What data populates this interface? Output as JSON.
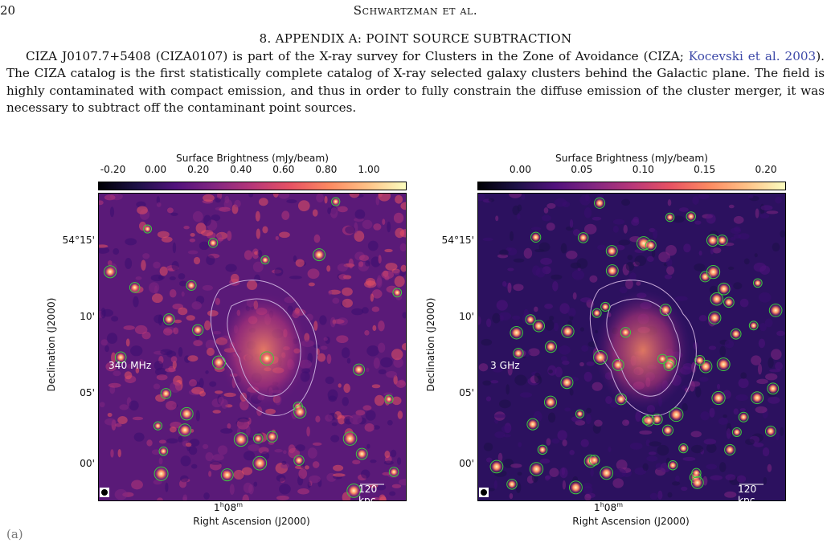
{
  "header": {
    "page_number": "20",
    "running_head": "Schwartzman et al."
  },
  "section": {
    "title": "8. APPENDIX A: POINT SOURCE SUBTRACTION"
  },
  "paragraph": {
    "pre": "CIZA J0107.7+5408 (CIZA0107) is part of the X-ray survey for Clusters in the Zone of Avoidance (CIZA; ",
    "link": "Kocevski et al. 2003",
    "post": "). The CIZA catalog is the first statistically complete catalog of X-ray selected galaxy clusters behind the Galactic plane. The field is highly contaminated with compact emission, and thus in order to fully constrain the diffuse emission of the cluster merger, it was necessary to subtract off the contaminant point sources."
  },
  "figure": {
    "colormap_colors": [
      "#000004",
      "#1d1147",
      "#51127c",
      "#822681",
      "#b73779",
      "#e75263",
      "#fc8961",
      "#fec287",
      "#fcfdbf"
    ],
    "contour_color": "#c7a9d8",
    "source_circle_color": "#3ec93e",
    "panels": [
      {
        "band_label": "340 MHz",
        "colorbar_title": "Surface Brightness (mJy/beam)",
        "colorbar_ticks": [
          "-0.20",
          "0.00",
          "0.20",
          "0.40",
          "0.60",
          "0.80",
          "1.00"
        ],
        "colorbar_range": [
          -0.27,
          1.17
        ],
        "y_ticks": [
          "54°15'",
          "10'",
          "05'",
          "00'"
        ],
        "x_tick": "1h08m",
        "xlabel": "Right Ascension (J2000)",
        "ylabel": "Declination (J2000)",
        "scale_bar": "120 kpc"
      },
      {
        "band_label": "3 GHz",
        "colorbar_title": "Surface Brightness (mJy/beam)",
        "colorbar_ticks": [
          "0.00",
          "0.05",
          "0.10",
          "0.15",
          "0.20"
        ],
        "colorbar_range": [
          -0.035,
          0.215
        ],
        "y_ticks": [
          "54°15'",
          "10'",
          "05'",
          "00'"
        ],
        "x_tick": "1h08m",
        "xlabel": "Right Ascension (J2000)",
        "ylabel": "Declination (J2000)",
        "scale_bar": "120 kpc"
      }
    ]
  },
  "footer_fragment": "(a)"
}
